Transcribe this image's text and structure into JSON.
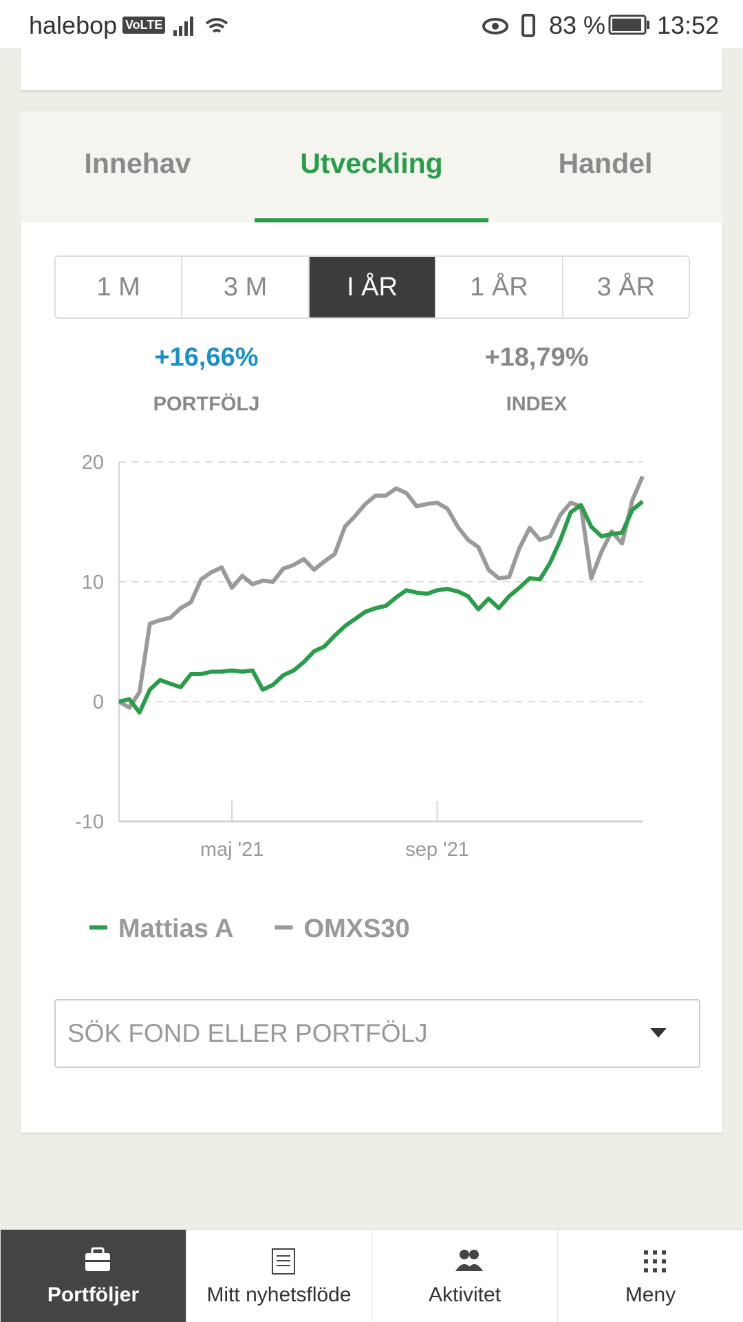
{
  "status_bar": {
    "carrier": "halebop",
    "network": "VoLTE",
    "battery": "83 %",
    "time": "13:52"
  },
  "tabs": {
    "items": [
      "Innehav",
      "Utveckling",
      "Handel"
    ],
    "active": 1
  },
  "periods": {
    "items": [
      "1 M",
      "3 M",
      "I ÅR",
      "1 ÅR",
      "3 ÅR"
    ],
    "active": 2
  },
  "stats": [
    {
      "value": "+16,66%",
      "label": "PORTFÖLJ"
    },
    {
      "value": "+18,79%",
      "label": "INDEX"
    }
  ],
  "chart_data": {
    "type": "line",
    "categories": [
      null,
      null,
      null,
      null,
      null,
      null,
      null,
      null,
      null,
      null,
      null,
      "maj '21",
      null,
      null,
      null,
      null,
      null,
      null,
      null,
      null,
      null,
      null,
      null,
      null,
      null,
      null,
      null,
      null,
      null,
      null,
      null,
      "sep '21",
      null,
      null,
      null,
      null,
      null,
      null,
      null,
      null,
      null,
      null,
      null,
      null,
      null,
      null,
      null,
      null,
      null,
      null,
      null,
      null
    ],
    "series": [
      {
        "name": "Mattias A",
        "color": "#2a9d4a",
        "values": [
          0,
          0.2,
          -0.9,
          1,
          1.8,
          1.5,
          1.2,
          2.3,
          2.3,
          2.5,
          2.5,
          2.6,
          2.5,
          2.6,
          1,
          1.4,
          2.2,
          2.6,
          3.3,
          4.2,
          4.6,
          5.5,
          6.3,
          6.9,
          7.5,
          7.8,
          8,
          8.7,
          9.3,
          9.1,
          9,
          9.3,
          9.4,
          9.2,
          8.8,
          7.7,
          8.6,
          7.8,
          8.8,
          9.5,
          10.3,
          10.2,
          11.6,
          13.5,
          15.8,
          16.4,
          14.6,
          13.8,
          14,
          14.1,
          16,
          16.7
        ]
      },
      {
        "name": "OMXS30",
        "color": "#9a9a9a",
        "values": [
          0,
          -0.5,
          0.8,
          6.5,
          6.8,
          7,
          7.8,
          8.3,
          10.2,
          10.8,
          11.2,
          9.5,
          10.5,
          9.8,
          10.1,
          10,
          11.1,
          11.4,
          11.9,
          11,
          11.7,
          12.3,
          14.6,
          15.5,
          16.5,
          17.2,
          17.2,
          17.8,
          17.4,
          16.3,
          16.5,
          16.6,
          16.1,
          14.6,
          13.5,
          12.9,
          11,
          10.3,
          10.4,
          12.8,
          14.5,
          13.5,
          13.8,
          15.6,
          16.6,
          16.3,
          10.3,
          12.5,
          14.2,
          13.2,
          16.8,
          18.8
        ]
      }
    ],
    "ylim": [
      -10,
      20
    ],
    "yticks": [
      -10,
      0,
      10,
      20
    ],
    "grid": true
  },
  "search": {
    "placeholder": "SÖK FOND ELLER PORTFÖLJ"
  },
  "nav": {
    "items": [
      "Portföljer",
      "Mitt nyhetsflöde",
      "Aktivitet",
      "Meny"
    ],
    "active": 0
  }
}
